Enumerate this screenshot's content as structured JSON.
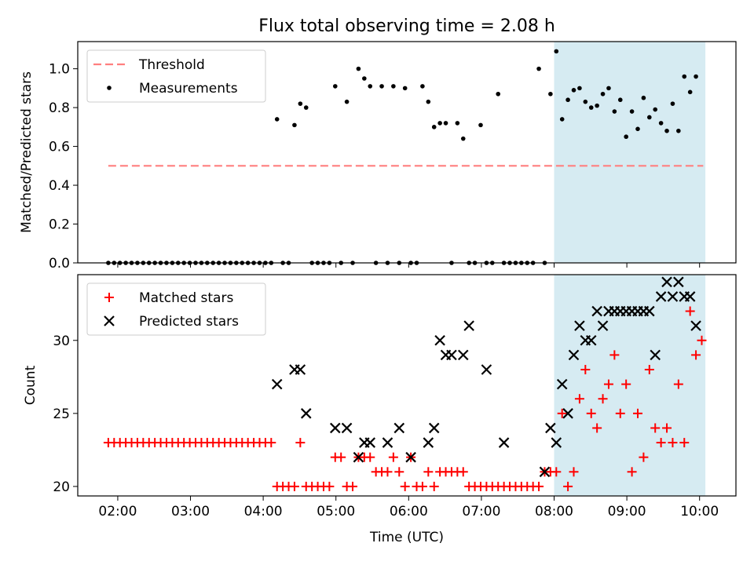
{
  "title": "Flux total observing time = 2.08 h",
  "chart_data": [
    {
      "type": "scatter",
      "ylabel": "Matched/Predicted stars",
      "ylim": [
        0.0,
        1.14
      ],
      "yticks": [
        0.0,
        0.2,
        0.4,
        0.6,
        0.8,
        1.0
      ],
      "xlim": [
        1.45,
        10.5
      ],
      "legend": {
        "placement": "top-left",
        "entries": [
          "Threshold",
          "Measurements"
        ]
      },
      "threshold": {
        "name": "Threshold",
        "y": 0.5,
        "x_range": [
          1.87,
          10.05
        ],
        "color": "#ff7f7f"
      },
      "highlight": {
        "x_range": [
          8.0,
          10.08
        ],
        "color": "#add8e6"
      },
      "series": [
        {
          "name": "Measurements",
          "color": "#000000",
          "points": [
            [
              1.87,
              0
            ],
            [
              1.95,
              0
            ],
            [
              2.03,
              0
            ],
            [
              2.11,
              0
            ],
            [
              2.19,
              0
            ],
            [
              2.27,
              0
            ],
            [
              2.35,
              0
            ],
            [
              2.43,
              0
            ],
            [
              2.51,
              0
            ],
            [
              2.59,
              0
            ],
            [
              2.67,
              0
            ],
            [
              2.75,
              0
            ],
            [
              2.83,
              0
            ],
            [
              2.91,
              0
            ],
            [
              2.99,
              0
            ],
            [
              3.07,
              0
            ],
            [
              3.15,
              0
            ],
            [
              3.23,
              0
            ],
            [
              3.31,
              0
            ],
            [
              3.39,
              0
            ],
            [
              3.47,
              0
            ],
            [
              3.55,
              0
            ],
            [
              3.63,
              0
            ],
            [
              3.71,
              0
            ],
            [
              3.79,
              0
            ],
            [
              3.87,
              0
            ],
            [
              3.95,
              0
            ],
            [
              4.03,
              0
            ],
            [
              4.11,
              0
            ],
            [
              4.19,
              0.74
            ],
            [
              4.27,
              0
            ],
            [
              4.35,
              0
            ],
            [
              4.43,
              0.71
            ],
            [
              4.51,
              0.82
            ],
            [
              4.59,
              0.8
            ],
            [
              4.67,
              0
            ],
            [
              4.75,
              0
            ],
            [
              4.83,
              0
            ],
            [
              4.91,
              0
            ],
            [
              4.99,
              0.91
            ],
            [
              5.07,
              0
            ],
            [
              5.15,
              0.83
            ],
            [
              5.23,
              0
            ],
            [
              5.31,
              1.0
            ],
            [
              5.39,
              0.95
            ],
            [
              5.47,
              0.91
            ],
            [
              5.55,
              0
            ],
            [
              5.63,
              0.91
            ],
            [
              5.71,
              0
            ],
            [
              5.79,
              0.91
            ],
            [
              5.87,
              0
            ],
            [
              5.95,
              0.9
            ],
            [
              6.03,
              0
            ],
            [
              6.11,
              0
            ],
            [
              6.19,
              0.91
            ],
            [
              6.27,
              0.83
            ],
            [
              6.35,
              0.7
            ],
            [
              6.43,
              0.72
            ],
            [
              6.51,
              0.72
            ],
            [
              6.59,
              0
            ],
            [
              6.67,
              0.72
            ],
            [
              6.75,
              0.64
            ],
            [
              6.83,
              0
            ],
            [
              6.91,
              0
            ],
            [
              6.99,
              0.71
            ],
            [
              7.07,
              0
            ],
            [
              7.15,
              0
            ],
            [
              7.23,
              0.87
            ],
            [
              7.31,
              0
            ],
            [
              7.39,
              0
            ],
            [
              7.47,
              0
            ],
            [
              7.55,
              0
            ],
            [
              7.63,
              0
            ],
            [
              7.71,
              0
            ],
            [
              7.79,
              1.0
            ],
            [
              7.87,
              0
            ],
            [
              7.95,
              0.87
            ],
            [
              8.03,
              1.09
            ],
            [
              8.11,
              0.74
            ],
            [
              8.19,
              0.84
            ],
            [
              8.27,
              0.89
            ],
            [
              8.35,
              0.9
            ],
            [
              8.43,
              0.83
            ],
            [
              8.51,
              0.8
            ],
            [
              8.59,
              0.81
            ],
            [
              8.67,
              0.87
            ],
            [
              8.75,
              0.9
            ],
            [
              8.83,
              0.78
            ],
            [
              8.91,
              0.84
            ],
            [
              8.99,
              0.65
            ],
            [
              9.07,
              0.78
            ],
            [
              9.15,
              0.69
            ],
            [
              9.23,
              0.85
            ],
            [
              9.31,
              0.75
            ],
            [
              9.39,
              0.79
            ],
            [
              9.47,
              0.72
            ],
            [
              9.55,
              0.68
            ],
            [
              9.63,
              0.82
            ],
            [
              9.71,
              0.68
            ],
            [
              9.79,
              0.96
            ],
            [
              9.87,
              0.88
            ],
            [
              9.95,
              0.96
            ]
          ]
        }
      ]
    },
    {
      "type": "scatter",
      "xlabel": "Time (UTC)",
      "ylabel": "Count",
      "ylim": [
        19.35,
        34.5
      ],
      "yticks": [
        20,
        25,
        30
      ],
      "xlim": [
        1.45,
        10.5
      ],
      "xticks": [
        "02:00",
        "03:00",
        "04:00",
        "05:00",
        "06:00",
        "07:00",
        "08:00",
        "09:00",
        "10:00"
      ],
      "legend": {
        "placement": "top-left",
        "entries": [
          "Matched stars",
          "Predicted stars"
        ]
      },
      "highlight": {
        "x_range": [
          8.0,
          10.08
        ],
        "color": "#add8e6"
      },
      "series": [
        {
          "name": "Matched stars",
          "color": "#ff0000",
          "marker": "plus",
          "points": [
            [
              1.87,
              23
            ],
            [
              1.95,
              23
            ],
            [
              2.03,
              23
            ],
            [
              2.11,
              23
            ],
            [
              2.19,
              23
            ],
            [
              2.27,
              23
            ],
            [
              2.35,
              23
            ],
            [
              2.43,
              23
            ],
            [
              2.51,
              23
            ],
            [
              2.59,
              23
            ],
            [
              2.67,
              23
            ],
            [
              2.75,
              23
            ],
            [
              2.83,
              23
            ],
            [
              2.91,
              23
            ],
            [
              2.99,
              23
            ],
            [
              3.07,
              23
            ],
            [
              3.15,
              23
            ],
            [
              3.23,
              23
            ],
            [
              3.31,
              23
            ],
            [
              3.39,
              23
            ],
            [
              3.47,
              23
            ],
            [
              3.55,
              23
            ],
            [
              3.63,
              23
            ],
            [
              3.71,
              23
            ],
            [
              3.79,
              23
            ],
            [
              3.87,
              23
            ],
            [
              3.95,
              23
            ],
            [
              4.03,
              23
            ],
            [
              4.11,
              23
            ],
            [
              4.19,
              20
            ],
            [
              4.27,
              20
            ],
            [
              4.35,
              20
            ],
            [
              4.43,
              20
            ],
            [
              4.51,
              23
            ],
            [
              4.59,
              20
            ],
            [
              4.67,
              20
            ],
            [
              4.75,
              20
            ],
            [
              4.83,
              20
            ],
            [
              4.91,
              20
            ],
            [
              4.99,
              22
            ],
            [
              5.07,
              22
            ],
            [
              5.15,
              20
            ],
            [
              5.23,
              20
            ],
            [
              5.31,
              22
            ],
            [
              5.39,
              22
            ],
            [
              5.47,
              22
            ],
            [
              5.55,
              21
            ],
            [
              5.63,
              21
            ],
            [
              5.71,
              21
            ],
            [
              5.79,
              22
            ],
            [
              5.87,
              21
            ],
            [
              5.95,
              20
            ],
            [
              6.03,
              22
            ],
            [
              6.11,
              20
            ],
            [
              6.19,
              20
            ],
            [
              6.27,
              21
            ],
            [
              6.35,
              20
            ],
            [
              6.43,
              21
            ],
            [
              6.51,
              21
            ],
            [
              6.59,
              21
            ],
            [
              6.67,
              21
            ],
            [
              6.75,
              21
            ],
            [
              6.83,
              20
            ],
            [
              6.91,
              20
            ],
            [
              6.99,
              20
            ],
            [
              7.07,
              20
            ],
            [
              7.15,
              20
            ],
            [
              7.23,
              20
            ],
            [
              7.31,
              20
            ],
            [
              7.39,
              20
            ],
            [
              7.47,
              20
            ],
            [
              7.55,
              20
            ],
            [
              7.63,
              20
            ],
            [
              7.71,
              20
            ],
            [
              7.79,
              20
            ],
            [
              7.87,
              21
            ],
            [
              7.95,
              21
            ],
            [
              8.03,
              21
            ],
            [
              8.11,
              25
            ],
            [
              8.19,
              20
            ],
            [
              8.27,
              21
            ],
            [
              8.35,
              26
            ],
            [
              8.43,
              28
            ],
            [
              8.51,
              25
            ],
            [
              8.59,
              24
            ],
            [
              8.67,
              26
            ],
            [
              8.75,
              27
            ],
            [
              8.83,
              29
            ],
            [
              8.91,
              25
            ],
            [
              8.99,
              27
            ],
            [
              9.07,
              21
            ],
            [
              9.15,
              25
            ],
            [
              9.23,
              22
            ],
            [
              9.31,
              28
            ],
            [
              9.39,
              24
            ],
            [
              9.47,
              23
            ],
            [
              9.55,
              24
            ],
            [
              9.63,
              23
            ],
            [
              9.71,
              27
            ],
            [
              9.79,
              23
            ],
            [
              9.87,
              32
            ],
            [
              9.95,
              29
            ],
            [
              10.03,
              30
            ]
          ]
        },
        {
          "name": "Predicted stars",
          "color": "#000000",
          "marker": "x",
          "points": [
            [
              4.19,
              27
            ],
            [
              4.43,
              28
            ],
            [
              4.51,
              28
            ],
            [
              4.59,
              25
            ],
            [
              4.99,
              24
            ],
            [
              5.15,
              24
            ],
            [
              5.31,
              22
            ],
            [
              5.39,
              23
            ],
            [
              5.47,
              23
            ],
            [
              5.71,
              23
            ],
            [
              5.87,
              24
            ],
            [
              6.03,
              22
            ],
            [
              6.27,
              23
            ],
            [
              6.35,
              24
            ],
            [
              6.43,
              30
            ],
            [
              6.51,
              29
            ],
            [
              6.59,
              29
            ],
            [
              6.75,
              29
            ],
            [
              6.83,
              31
            ],
            [
              7.07,
              28
            ],
            [
              7.31,
              23
            ],
            [
              7.87,
              21
            ],
            [
              7.95,
              24
            ],
            [
              8.03,
              23
            ],
            [
              8.11,
              27
            ],
            [
              8.19,
              25
            ],
            [
              8.27,
              29
            ],
            [
              8.35,
              31
            ],
            [
              8.43,
              30
            ],
            [
              8.51,
              30
            ],
            [
              8.59,
              32
            ],
            [
              8.67,
              31
            ],
            [
              8.75,
              32
            ],
            [
              8.83,
              32
            ],
            [
              8.91,
              32
            ],
            [
              8.99,
              32
            ],
            [
              9.07,
              32
            ],
            [
              9.15,
              32
            ],
            [
              9.23,
              32
            ],
            [
              9.31,
              32
            ],
            [
              9.39,
              29
            ],
            [
              9.47,
              33
            ],
            [
              9.55,
              34
            ],
            [
              9.63,
              33
            ],
            [
              9.71,
              34
            ],
            [
              9.79,
              33
            ],
            [
              9.87,
              33
            ],
            [
              9.95,
              31
            ]
          ]
        }
      ]
    }
  ]
}
